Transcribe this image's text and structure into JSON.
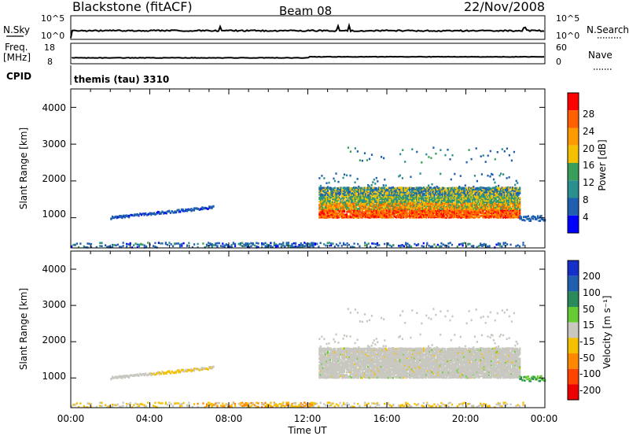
{
  "header": {
    "station": "Blackstone (fitACF)",
    "beam": "Beam 08",
    "date": "22/Nov/2008"
  },
  "meta_panels": {
    "nsky_label": "N.Sky",
    "nsky_ticks": [
      "10^5",
      "10^0"
    ],
    "nsearch_label": "N.Search",
    "nsearch_ticks": [
      "10^5",
      "10^0"
    ],
    "freq_label": "Freq.",
    "freq_unit": "[MHz]",
    "freq_ticks": [
      "18",
      "8"
    ],
    "nave_label": "Nave",
    "nave_ticks": [
      "60",
      "0"
    ],
    "cpid_label": "CPID",
    "cpid_text": "themis (tau) 3310"
  },
  "x_axis": {
    "ticks": [
      "00:00",
      "04:00",
      "08:00",
      "12:00",
      "16:00",
      "20:00",
      "00:00"
    ],
    "label": "Time UT"
  },
  "panels": {
    "power": {
      "ylabel": "Slant Range [km]",
      "yticks": [
        "1000",
        "2000",
        "3000",
        "4000"
      ],
      "colorbar_label": "Power [dB]",
      "colorbar_ticks": [
        "4",
        "8",
        "12",
        "16",
        "20",
        "24",
        "28"
      ],
      "colors": [
        "#0000ff",
        "#1f5fb0",
        "#2a8f8f",
        "#3a9e5a",
        "#f5c000",
        "#ff9a00",
        "#ff6000",
        "#ff0000"
      ]
    },
    "velocity": {
      "ylabel": "Slant Range [km]",
      "yticks": [
        "1000",
        "2000",
        "3000",
        "4000"
      ],
      "colorbar_label": "Velocity [m s⁻¹]",
      "colorbar_ticks": [
        "200",
        "100",
        "50",
        "15",
        "-15",
        "-50",
        "-100",
        "-200"
      ],
      "colors": [
        "#1530c8",
        "#1f5fb0",
        "#2a8a5a",
        "#66cc33",
        "#c8c8c0",
        "#f5c000",
        "#ff8800",
        "#ff4400",
        "#ee0000"
      ]
    }
  },
  "chart_data": {
    "type": "heatmap",
    "x_range_hours": [
      0,
      24
    ],
    "y_range_km": [
      180,
      4500
    ],
    "regions": [
      {
        "name": "near-range band",
        "t0": 0,
        "t1": 23.0,
        "r0": 180,
        "r1": 320,
        "power": "low-mid",
        "velocity": "orange/grey"
      },
      {
        "name": "early echo arc",
        "t0": 2.0,
        "t1": 7.2,
        "r0": 950,
        "r1": 1280,
        "power": "blue",
        "velocity": "orange/grey"
      },
      {
        "name": "main band",
        "t0": 12.5,
        "t1": 22.7,
        "r0": 1000,
        "r1": 1800,
        "power": "red/orange/green",
        "velocity": "grey"
      },
      {
        "name": "upper scatter",
        "t0": 14.0,
        "t1": 22.5,
        "r0": 2500,
        "r1": 3000,
        "power": "blue",
        "velocity": "grey"
      },
      {
        "name": "late echo",
        "t0": 22.7,
        "t1": 24.0,
        "r0": 880,
        "r1": 1050,
        "power": "blue",
        "velocity": "green"
      }
    ]
  }
}
